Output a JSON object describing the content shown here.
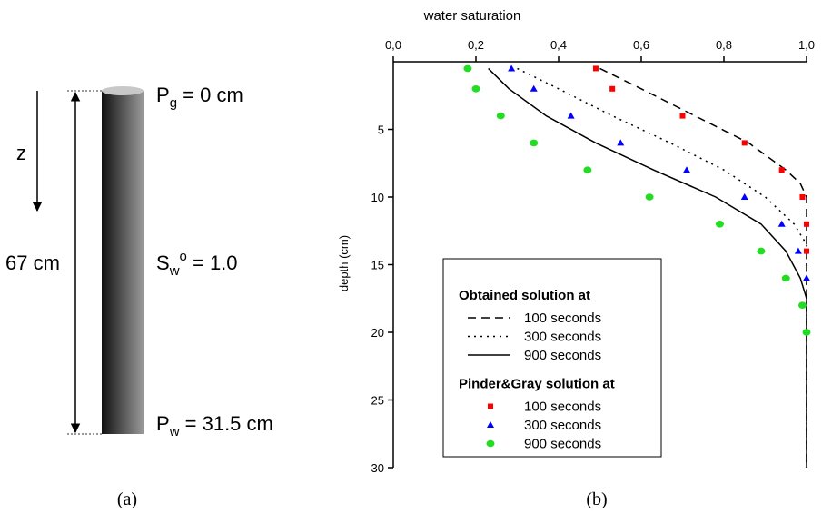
{
  "diagram": {
    "z_label": "z",
    "length_label": "67 cm",
    "top_label": {
      "main": "P",
      "sub": "g",
      "rest": " = 0 cm"
    },
    "middle_label": {
      "main": "S",
      "sub": "w",
      "sup": "o",
      "rest": " = 1.0"
    },
    "bottom_label": {
      "main": "P",
      "sub": "w",
      "rest": " = 31.5 cm"
    },
    "caption": "(a)"
  },
  "chart_data": {
    "type": "line",
    "caption": "(b)",
    "x_label": "water saturation",
    "y_label": "depth (cm)",
    "xlim": [
      0,
      1
    ],
    "xticks": [
      {
        "value": 0,
        "label": "0,0"
      },
      {
        "value": 0.2,
        "label": "0,2"
      },
      {
        "value": 0.4,
        "label": "0,4"
      },
      {
        "value": 0.6,
        "label": "0,6"
      },
      {
        "value": 0.8,
        "label": "0,8"
      },
      {
        "value": 1,
        "label": "1,0"
      }
    ],
    "ylim": [
      0,
      30
    ],
    "yticks": [
      5,
      10,
      15,
      20,
      25,
      30
    ],
    "y_inverted": true,
    "series_groups": [
      {
        "title": "Obtained solution at",
        "series": [
          {
            "name": "100 seconds",
            "color": "#000000",
            "style": "dashed",
            "x": [
              0.5,
              0.6,
              0.73,
              0.86,
              0.95,
              0.985,
              1.0,
              1.0
            ],
            "y": [
              0.5,
              2,
              4,
              6,
              8,
              9,
              10,
              30
            ]
          },
          {
            "name": "300 seconds",
            "color": "#000000",
            "style": "dotted",
            "x": [
              0.3,
              0.4,
              0.53,
              0.67,
              0.8,
              0.9,
              0.97,
              1.0,
              1.0
            ],
            "y": [
              0.5,
              2,
              4,
              6,
              8,
              10,
              12,
              13.5,
              30
            ]
          },
          {
            "name": "900 seconds",
            "color": "#000000",
            "style": "solid",
            "x": [
              0.23,
              0.28,
              0.37,
              0.49,
              0.63,
              0.78,
              0.89,
              0.95,
              0.985,
              1.0,
              1.0
            ],
            "y": [
              0.5,
              2,
              4,
              6,
              8,
              10,
              12,
              14,
              16,
              17.5,
              30
            ]
          }
        ]
      },
      {
        "title": "Pinder&Gray solution at",
        "series": [
          {
            "name": "100 seconds",
            "color": "#ff0000",
            "marker": "square",
            "x": [
              0.49,
              0.53,
              0.7,
              0.85,
              0.94,
              0.99,
              1.0,
              1.0
            ],
            "y": [
              0.5,
              2,
              4,
              6,
              8,
              10,
              12,
              14
            ]
          },
          {
            "name": "300 seconds",
            "color": "#0000ff",
            "marker": "triangle",
            "x": [
              0.286,
              0.34,
              0.43,
              0.55,
              0.71,
              0.85,
              0.94,
              0.98,
              1.0
            ],
            "y": [
              0.5,
              2,
              4,
              6,
              8,
              10,
              12,
              14,
              16
            ]
          },
          {
            "name": "900 seconds",
            "color": "#22dd22",
            "marker": "circle",
            "x": [
              0.18,
              0.2,
              0.26,
              0.34,
              0.47,
              0.62,
              0.79,
              0.89,
              0.95,
              0.99,
              1.0
            ],
            "y": [
              0.5,
              2,
              4,
              6,
              8,
              10,
              12,
              14,
              16,
              18,
              20
            ]
          }
        ]
      }
    ]
  }
}
